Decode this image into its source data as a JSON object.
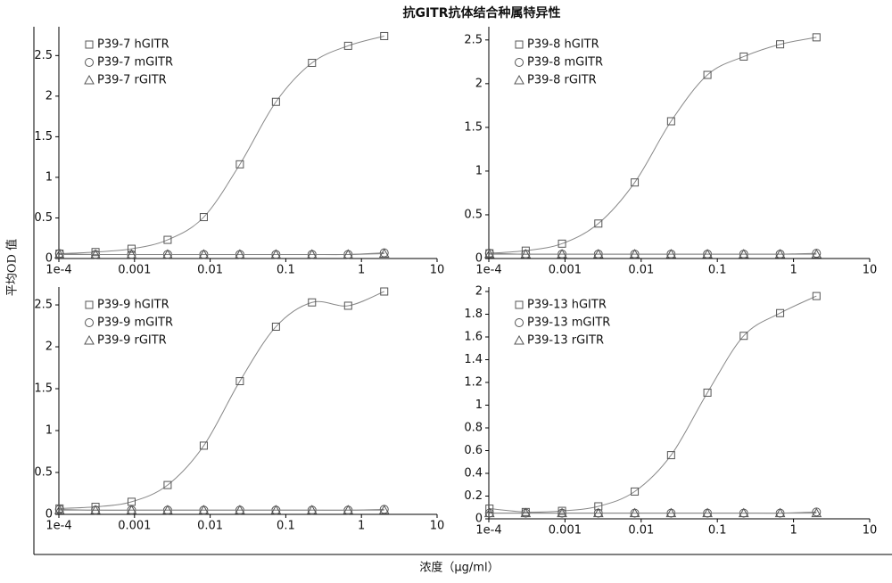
{
  "title": "抗GITR抗体结合种属特异性",
  "xlabel": "浓度（μg/ml）",
  "ylabel": "平均OD 值",
  "chart_data": [
    {
      "type": "scatter",
      "xscale": "log",
      "xlim": [
        0.0001,
        10
      ],
      "ylim": [
        0,
        2.8
      ],
      "xticks": [
        {
          "value": 0.0001,
          "label": "1e-4"
        },
        0.001,
        0.01,
        0.1,
        1,
        10
      ],
      "yticks": [
        0,
        0.5,
        1,
        1.5,
        2,
        2.5
      ],
      "x": [
        0.000102,
        0.000305,
        0.000914,
        0.00274,
        0.00823,
        0.0247,
        0.0741,
        0.222,
        0.667,
        2
      ],
      "series": [
        {
          "name": "P39-7 hGITR",
          "marker": "square",
          "color": "#555555",
          "values": [
            0.06,
            0.08,
            0.12,
            0.23,
            0.51,
            1.16,
            1.93,
            2.41,
            2.62,
            2.74
          ]
        },
        {
          "name": "P39-7 mGITR",
          "marker": "circle",
          "color": "#555555",
          "values": [
            0.06,
            0.05,
            0.05,
            0.05,
            0.05,
            0.05,
            0.05,
            0.05,
            0.05,
            0.07
          ]
        },
        {
          "name": "P39-7 rGITR",
          "marker": "triangle",
          "color": "#555555",
          "values": [
            0.05,
            0.05,
            0.05,
            0.05,
            0.05,
            0.05,
            0.05,
            0.05,
            0.05,
            0.06
          ]
        }
      ]
    },
    {
      "type": "scatter",
      "xscale": "log",
      "xlim": [
        0.0001,
        10
      ],
      "ylim": [
        0,
        2.6
      ],
      "xticks": [
        {
          "value": 0.0001,
          "label": "1e-4"
        },
        0.001,
        0.01,
        0.1,
        1,
        10
      ],
      "yticks": [
        0,
        0.5,
        1,
        1.5,
        2,
        2.5
      ],
      "x": [
        0.000102,
        0.000305,
        0.000914,
        0.00274,
        0.00823,
        0.0247,
        0.0741,
        0.222,
        0.667,
        2
      ],
      "series": [
        {
          "name": "P39-8 hGITR",
          "marker": "square",
          "color": "#555555",
          "values": [
            0.06,
            0.09,
            0.17,
            0.4,
            0.87,
            1.57,
            2.1,
            2.31,
            2.45,
            2.53
          ]
        },
        {
          "name": "P39-8 mGITR",
          "marker": "circle",
          "color": "#555555",
          "values": [
            0.06,
            0.05,
            0.05,
            0.05,
            0.05,
            0.05,
            0.05,
            0.05,
            0.05,
            0.06
          ]
        },
        {
          "name": "P39-8 rGITR",
          "marker": "triangle",
          "color": "#555555",
          "values": [
            0.05,
            0.05,
            0.05,
            0.05,
            0.05,
            0.05,
            0.05,
            0.05,
            0.05,
            0.05
          ]
        }
      ]
    },
    {
      "type": "scatter",
      "xscale": "log",
      "xlim": [
        0.0001,
        10
      ],
      "ylim": [
        0,
        2.66
      ],
      "xticks": [
        {
          "value": 0.0001,
          "label": "1e-4"
        },
        0.001,
        0.01,
        0.1,
        1,
        10
      ],
      "yticks": [
        0,
        0.5,
        1,
        1.5,
        2,
        2.5
      ],
      "x": [
        0.000102,
        0.000305,
        0.000914,
        0.00274,
        0.00823,
        0.0247,
        0.0741,
        0.222,
        0.667,
        2
      ],
      "series": [
        {
          "name": "P39-9 hGITR",
          "marker": "square",
          "color": "#555555",
          "values": [
            0.07,
            0.09,
            0.15,
            0.35,
            0.82,
            1.59,
            2.24,
            2.53,
            2.49,
            2.66
          ]
        },
        {
          "name": "P39-9 mGITR",
          "marker": "circle",
          "color": "#555555",
          "values": [
            0.06,
            0.05,
            0.05,
            0.05,
            0.05,
            0.05,
            0.05,
            0.05,
            0.05,
            0.06
          ]
        },
        {
          "name": "P39-9 rGITR",
          "marker": "triangle",
          "color": "#555555",
          "values": [
            0.05,
            0.05,
            0.05,
            0.05,
            0.05,
            0.05,
            0.05,
            0.05,
            0.05,
            0.05
          ]
        }
      ]
    },
    {
      "type": "scatter",
      "xscale": "log",
      "xlim": [
        0.0001,
        10
      ],
      "ylim": [
        0,
        2
      ],
      "xticks": [
        {
          "value": 0.0001,
          "label": "1e-4"
        },
        0.001,
        0.01,
        0.1,
        1,
        10
      ],
      "yticks": [
        0,
        0.2,
        0.4,
        0.6,
        0.8,
        1,
        1.2,
        1.4,
        1.6,
        1.8,
        2
      ],
      "x": [
        0.000102,
        0.000305,
        0.000914,
        0.00274,
        0.00823,
        0.0247,
        0.0741,
        0.222,
        0.667,
        2
      ],
      "series": [
        {
          "name": "P39-13 hGITR",
          "marker": "square",
          "color": "#555555",
          "values": [
            0.09,
            0.06,
            0.07,
            0.11,
            0.24,
            0.56,
            1.11,
            1.61,
            1.81,
            1.96
          ]
        },
        {
          "name": "P39-13 mGITR",
          "marker": "circle",
          "color": "#555555",
          "values": [
            0.05,
            0.05,
            0.05,
            0.05,
            0.05,
            0.05,
            0.05,
            0.05,
            0.05,
            0.06
          ]
        },
        {
          "name": "P39-13 rGITR",
          "marker": "triangle",
          "color": "#555555",
          "values": [
            0.05,
            0.05,
            0.05,
            0.05,
            0.05,
            0.05,
            0.05,
            0.05,
            0.05,
            0.05
          ]
        }
      ]
    }
  ]
}
